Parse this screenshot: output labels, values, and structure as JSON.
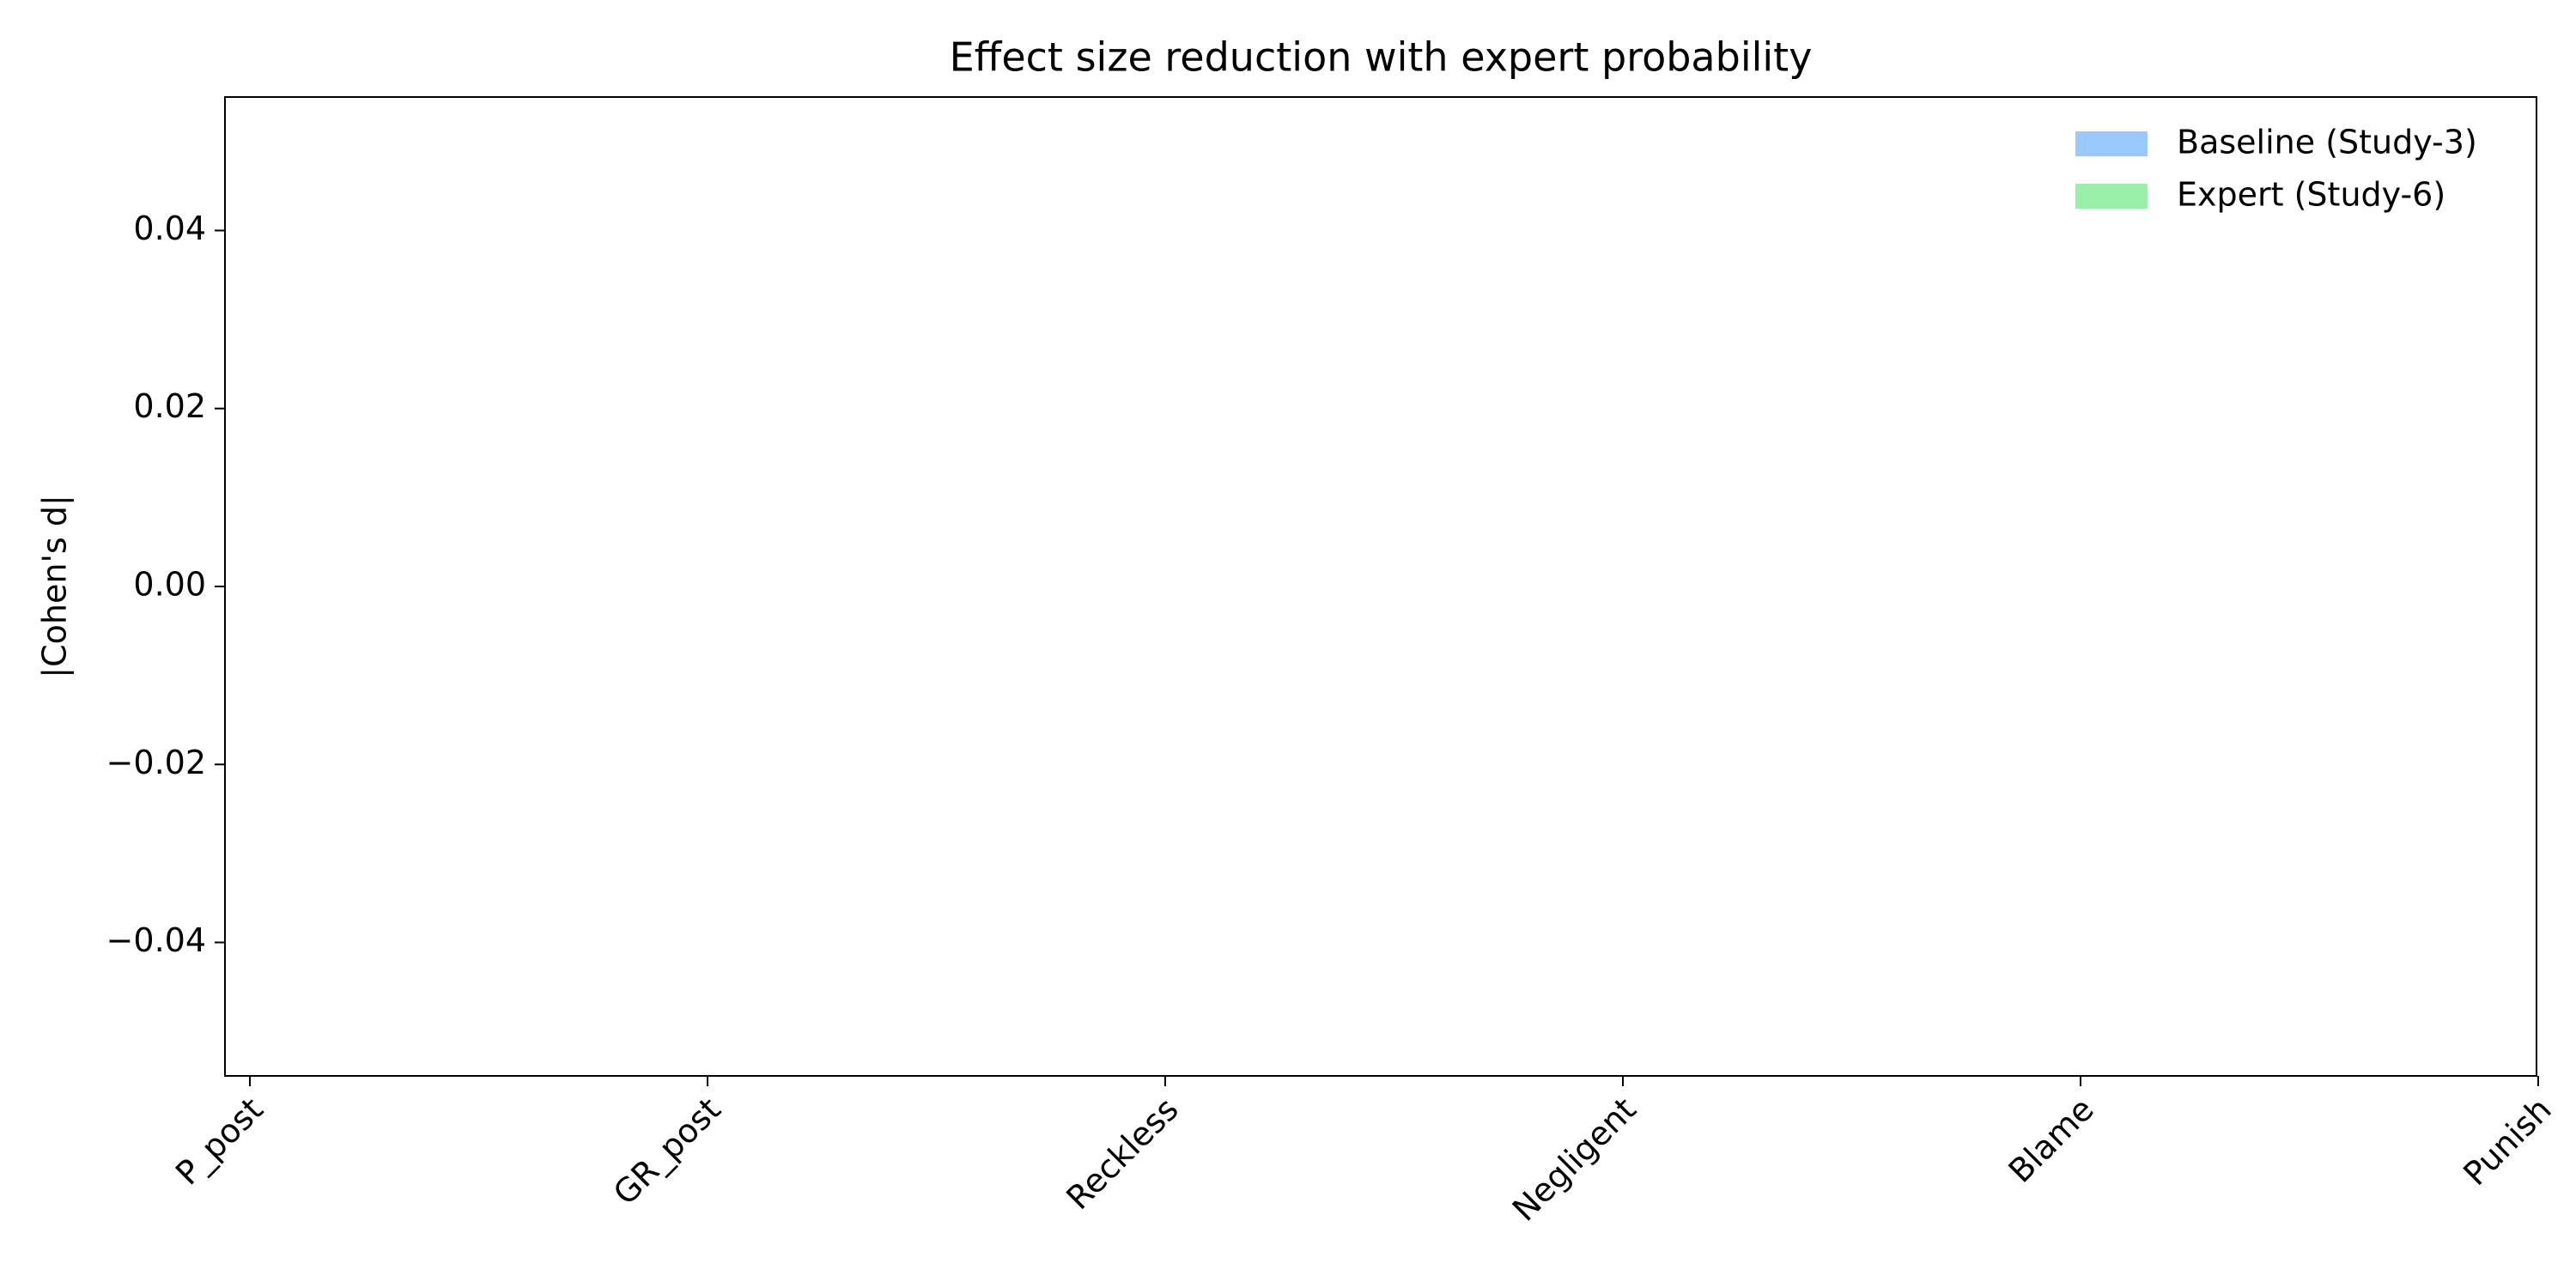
{
  "chart_data": {
    "type": "bar",
    "title": "Effect size reduction with expert probability",
    "ylabel": "|Cohen's d|",
    "categories": [
      "P_post",
      "GR_post",
      "Reckless",
      "Negligent",
      "Blame",
      "Punish"
    ],
    "series": [
      {
        "name": "Baseline (Study-3)",
        "color": "#99c9ff",
        "values": [
          null,
          null,
          null,
          null,
          null,
          null
        ]
      },
      {
        "name": "Expert (Study-6)",
        "color": "#99efaa",
        "values": [
          null,
          null,
          null,
          null,
          null,
          null
        ]
      }
    ],
    "ylim": [
      -0.055,
      0.055
    ],
    "yticks": [
      {
        "value": -0.04,
        "label": "−0.04"
      },
      {
        "value": -0.02,
        "label": "−0.02"
      },
      {
        "value": 0,
        "label": "0.00"
      },
      0.02,
      0.04
    ],
    "grid": false,
    "legend": "upper right"
  }
}
